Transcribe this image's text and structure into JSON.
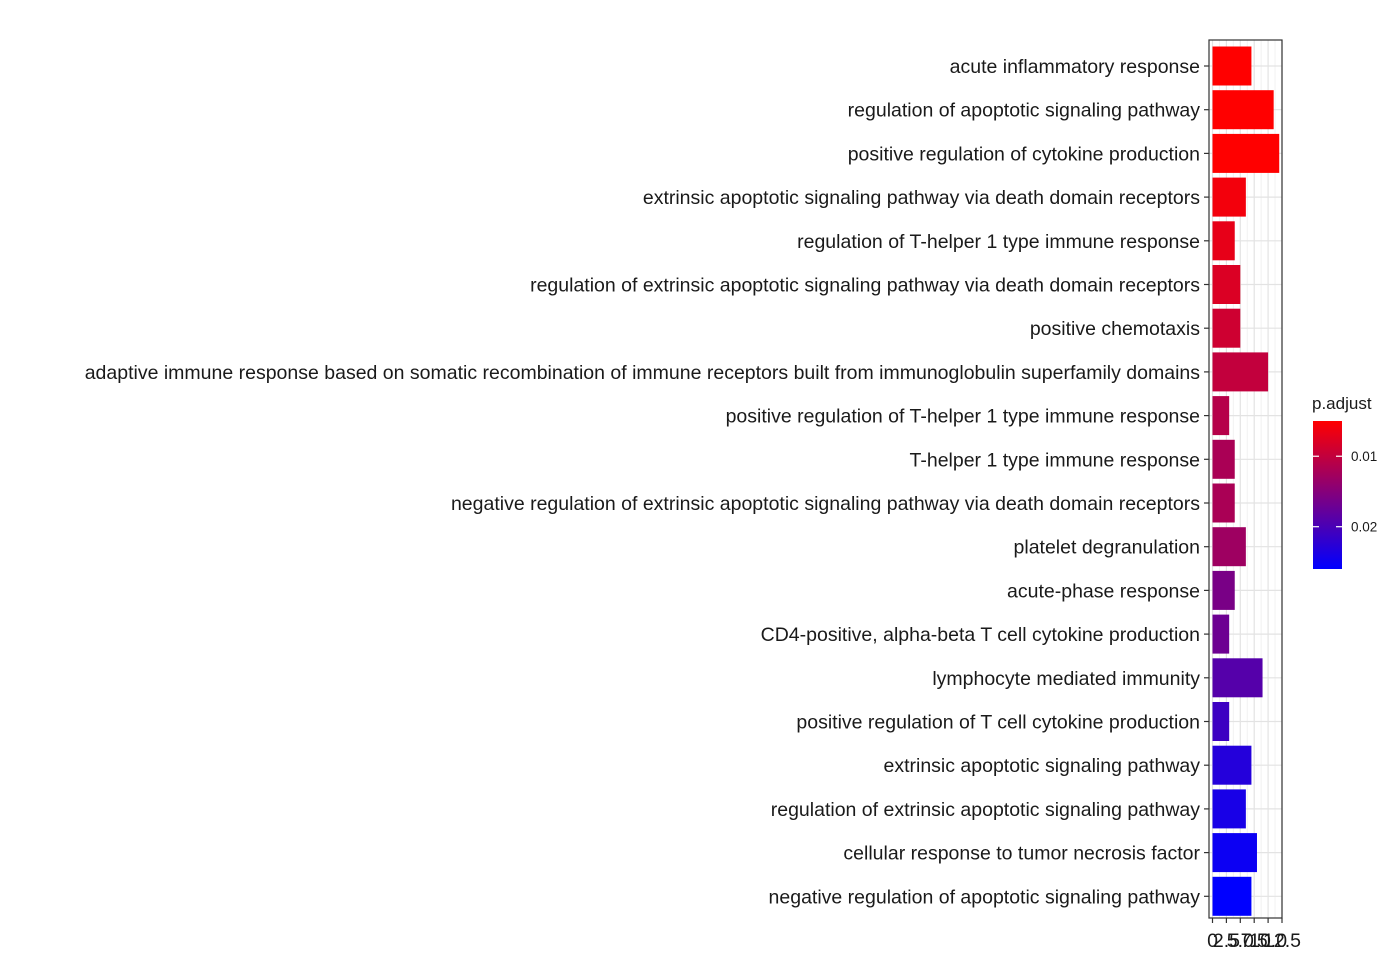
{
  "chart_data": {
    "type": "bar",
    "orientation": "horizontal",
    "title": "",
    "xlabel": "",
    "ylabel": "",
    "grid": true,
    "legend_position": "right",
    "xlim": [
      0,
      12.5
    ],
    "x_ticks": [
      0,
      2.5,
      5,
      7.5,
      10,
      12.5
    ],
    "x_tick_labels": [
      "0",
      "2.5",
      "5.0",
      "7.5",
      "10.0",
      "12.5"
    ],
    "categories": [
      "acute inflammatory response",
      "regulation of apoptotic signaling pathway",
      "positive regulation of cytokine production",
      "extrinsic apoptotic signaling pathway via death domain receptors",
      "regulation of T-helper 1 type immune response",
      "regulation of extrinsic apoptotic signaling pathway via death domain receptors",
      "positive chemotaxis",
      "adaptive immune response based on somatic recombination of immune receptors built from immunoglobulin superfamily domains",
      "positive regulation of T-helper 1 type immune response",
      "T-helper 1 type immune response",
      "negative regulation of extrinsic apoptotic signaling pathway via death domain receptors",
      "platelet degranulation",
      "acute-phase response",
      "CD4-positive, alpha-beta T cell cytokine production",
      "lymphocyte mediated immunity",
      "positive regulation of T cell cytokine production",
      "extrinsic apoptotic signaling pathway",
      "regulation of extrinsic apoptotic signaling pathway",
      "cellular response to tumor necrosis factor",
      "negative regulation of apoptotic signaling pathway"
    ],
    "values": [
      7,
      11,
      12,
      6,
      4,
      5,
      5,
      10,
      3,
      4,
      4,
      6,
      4,
      3,
      9,
      3,
      7,
      6,
      8,
      7
    ],
    "p_adjust": [
      0.005,
      0.005,
      0.005,
      0.006,
      0.007,
      0.008,
      0.009,
      0.01,
      0.011,
      0.012,
      0.012,
      0.013,
      0.016,
      0.017,
      0.019,
      0.021,
      0.023,
      0.024,
      0.025,
      0.026
    ],
    "legend": {
      "title": "p.adjust",
      "ticks": [
        0.01,
        0.02
      ],
      "tick_labels": [
        "0.01",
        "0.02"
      ],
      "range": [
        0.005,
        0.026
      ],
      "low_color": "#FF0000",
      "high_color": "#0000FF"
    }
  }
}
